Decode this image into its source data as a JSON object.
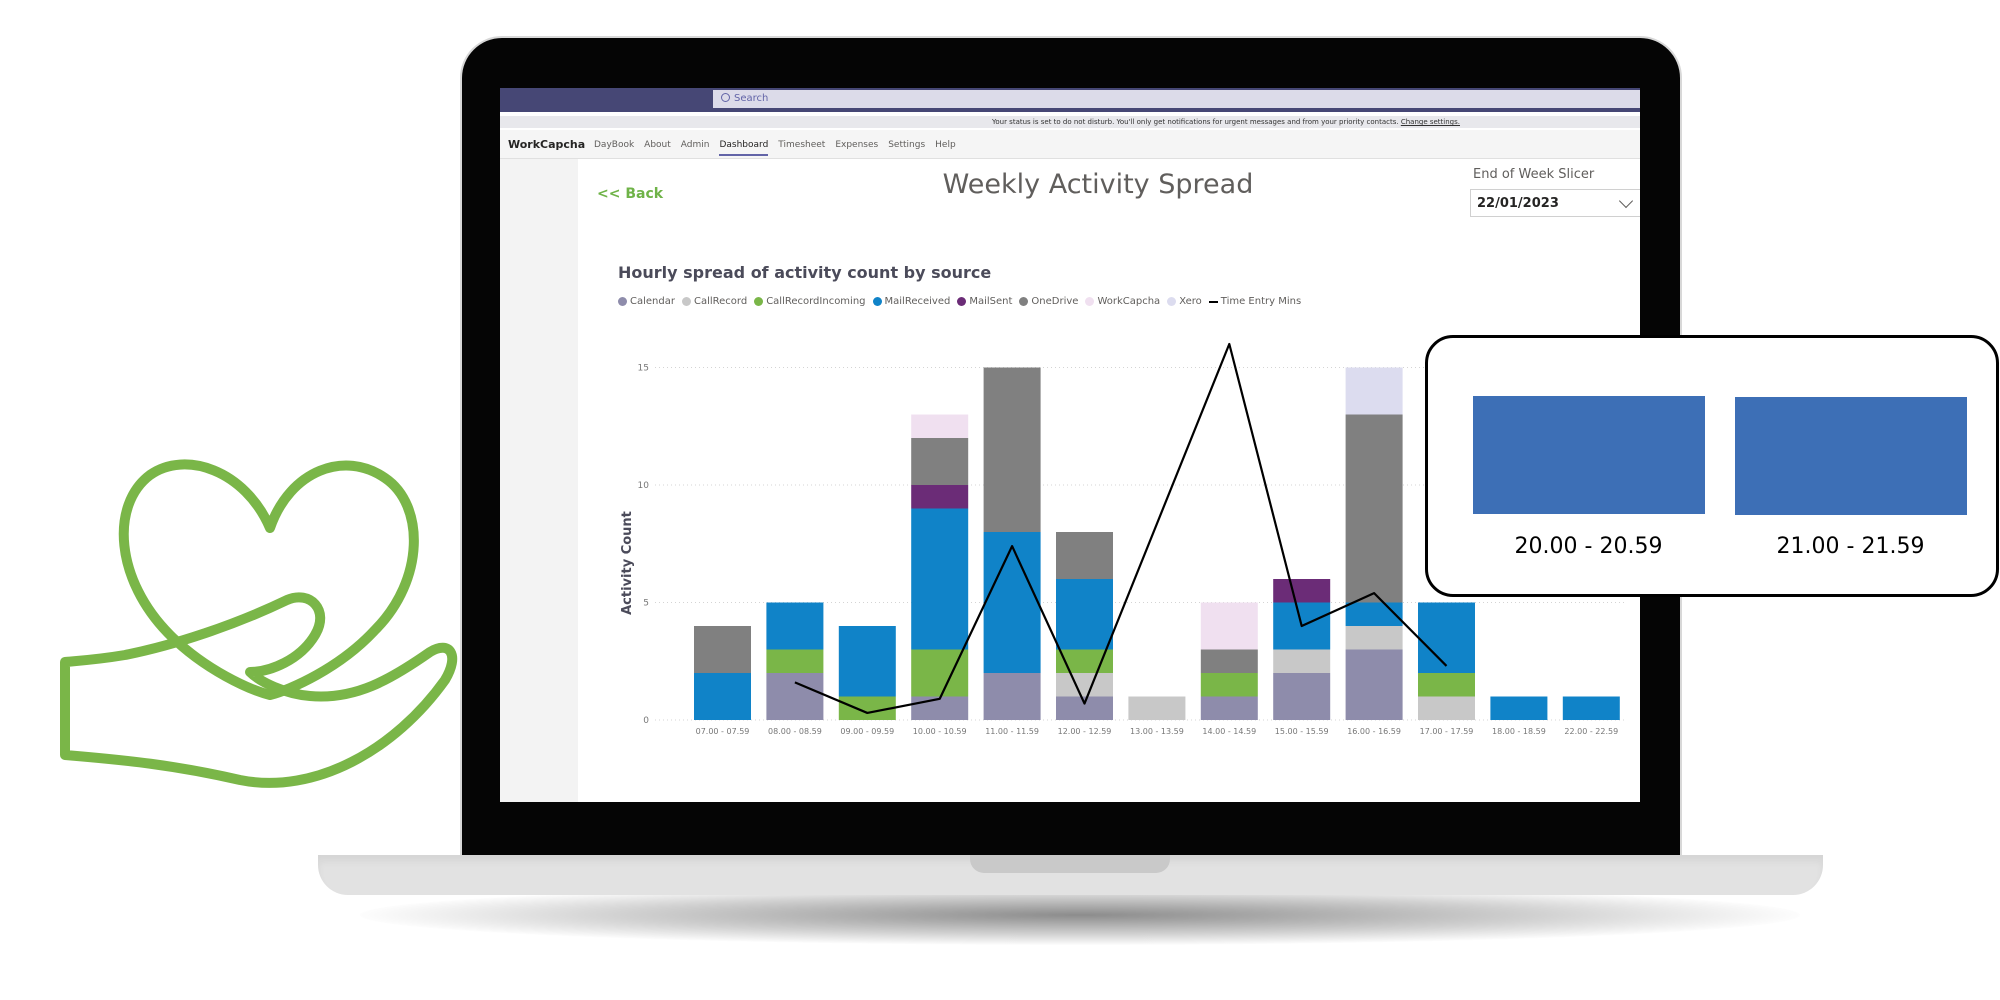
{
  "app": {
    "name": "WorkCapcha",
    "search_placeholder": "Search",
    "notice": "Your status is set to do not disturb. You'll only get notifications for urgent messages and from your priority contacts.",
    "notice_link": "Change settings.",
    "nav": [
      "DayBook",
      "About",
      "Admin",
      "Dashboard",
      "Timesheet",
      "Expenses",
      "Settings",
      "Help"
    ],
    "active_nav": "Dashboard"
  },
  "page": {
    "back_label": "<< Back",
    "title": "Weekly Activity Spread",
    "slicer_label": "End of Week Slicer",
    "slicer_value": "22/01/2023"
  },
  "colors": {
    "brand_green": "#7ab648",
    "callout_bar": "#3d6fb6"
  },
  "chart_data": {
    "type": "bar",
    "stacked": true,
    "title": "Hourly spread of activity count by source",
    "ylabel": "Activity Count",
    "xlabel": "",
    "ylim": [
      0,
      15
    ],
    "yticks": [
      0,
      5,
      10,
      15
    ],
    "grid": true,
    "legend_position": "top-left",
    "categories": [
      "07.00 - 07.59",
      "08.00 - 08.59",
      "09.00 - 09.59",
      "10.00 - 10.59",
      "11.00 - 11.59",
      "12.00 - 12.59",
      "13.00 - 13.59",
      "14.00 - 14.59",
      "15.00 - 15.59",
      "16.00 - 16.59",
      "17.00 - 17.59",
      "18.00 - 18.59",
      "22.00 - 22.59"
    ],
    "series": [
      {
        "name": "Calendar",
        "color": "#8e8cab",
        "values": [
          0,
          2,
          0,
          1,
          2,
          1,
          0,
          1,
          2,
          3,
          0,
          0,
          0
        ]
      },
      {
        "name": "CallRecord",
        "color": "#c8c8c8",
        "values": [
          0,
          0,
          0,
          0,
          0,
          1,
          1,
          0,
          1,
          1,
          1,
          0,
          0
        ]
      },
      {
        "name": "CallRecordIncoming",
        "color": "#7ab648",
        "values": [
          0,
          1,
          1,
          2,
          0,
          1,
          0,
          1,
          0,
          0,
          1,
          0,
          0
        ]
      },
      {
        "name": "MailReceived",
        "color": "#1083c8",
        "values": [
          2,
          2,
          3,
          6,
          6,
          3,
          0,
          0,
          2,
          1,
          3,
          1,
          1
        ]
      },
      {
        "name": "MailSent",
        "color": "#6b2c77",
        "values": [
          0,
          0,
          0,
          1,
          0,
          0,
          0,
          0,
          1,
          0,
          0,
          0,
          0
        ]
      },
      {
        "name": "OneDrive",
        "color": "#808080",
        "values": [
          2,
          0,
          0,
          2,
          7,
          2,
          0,
          1,
          0,
          8,
          0,
          0,
          0
        ]
      },
      {
        "name": "WorkCapcha",
        "color": "#f0e0f0",
        "values": [
          0,
          0,
          0,
          1,
          0,
          0,
          0,
          2,
          0,
          0,
          0,
          0,
          0
        ]
      },
      {
        "name": "Xero",
        "color": "#dcdcef",
        "values": [
          0,
          0,
          0,
          0,
          0,
          0,
          0,
          0,
          0,
          2,
          0,
          0,
          0
        ]
      }
    ],
    "line_series": {
      "name": "Time Entry Mins",
      "color": "#000000",
      "x_index": [
        1,
        2,
        3,
        4,
        5,
        7,
        8,
        9,
        10
      ],
      "values": [
        1.6,
        0.3,
        0.9,
        7.4,
        0.7,
        16,
        4,
        5.4,
        2.3
      ]
    }
  },
  "callout": {
    "labels": [
      "20.00 - 20.59",
      "21.00 - 21.59"
    ]
  }
}
